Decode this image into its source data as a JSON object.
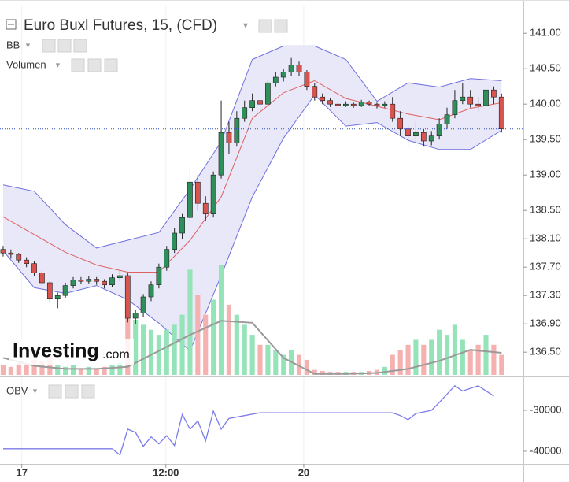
{
  "chart_data": [
    {
      "type": "candlestick",
      "title": "Euro Buxl Futures, 15, (CFD)",
      "watermark": {
        "text": "Investing",
        "suffix": ".com"
      },
      "xlim": [
        -0.4,
        66.8
      ],
      "xticks": [
        {
          "value": 2.4,
          "label": "17"
        },
        {
          "value": 20.9,
          "label": "12:00"
        },
        {
          "value": 38.6,
          "label": "20"
        }
      ],
      "ylim": [
        136.18,
        141.38
      ],
      "yticks": [
        {
          "value": 141,
          "label": "141.00"
        },
        {
          "value": 140.5,
          "label": "140.50"
        },
        {
          "value": 140,
          "label": "140.00"
        },
        {
          "value": 139.5,
          "label": "139.50"
        },
        {
          "value": 139,
          "label": "139.00"
        },
        {
          "value": 138.5,
          "label": "138.50"
        },
        {
          "value": 138.1,
          "label": "138.10"
        },
        {
          "value": 137.7,
          "label": "137.70"
        },
        {
          "value": 137.3,
          "label": "137.30"
        },
        {
          "value": 136.9,
          "label": "136.90"
        },
        {
          "value": 136.5,
          "label": "136.50"
        }
      ],
      "up_color": "#2f8f5b",
      "down_color": "#d9534f",
      "ohlc": [
        [
          137.95,
          138.0,
          137.85,
          137.9
        ],
        [
          137.9,
          137.95,
          137.82,
          137.88
        ],
        [
          137.88,
          137.9,
          137.76,
          137.8
        ],
        [
          137.8,
          137.84,
          137.7,
          137.75
        ],
        [
          137.75,
          137.78,
          137.58,
          137.62
        ],
        [
          137.62,
          137.66,
          137.44,
          137.48
        ],
        [
          137.48,
          137.5,
          137.2,
          137.25
        ],
        [
          137.25,
          137.34,
          137.12,
          137.3
        ],
        [
          137.3,
          137.48,
          137.26,
          137.44
        ],
        [
          137.44,
          137.56,
          137.4,
          137.52
        ],
        [
          137.52,
          137.56,
          137.46,
          137.5
        ],
        [
          137.5,
          137.57,
          137.47,
          137.53
        ],
        [
          137.53,
          137.56,
          137.45,
          137.5
        ],
        [
          137.5,
          137.53,
          137.4,
          137.45
        ],
        [
          137.45,
          137.6,
          137.42,
          137.55
        ],
        [
          137.55,
          137.66,
          137.5,
          137.58
        ],
        [
          137.58,
          137.62,
          136.92,
          136.98
        ],
        [
          136.98,
          137.1,
          136.9,
          137.05
        ],
        [
          137.05,
          137.32,
          137.0,
          137.28
        ],
        [
          137.28,
          137.5,
          137.22,
          137.45
        ],
        [
          137.45,
          137.75,
          137.4,
          137.7
        ],
        [
          137.7,
          138.0,
          137.65,
          137.95
        ],
        [
          137.95,
          138.25,
          137.9,
          138.18
        ],
        [
          138.18,
          138.45,
          138.1,
          138.4
        ],
        [
          138.4,
          139.1,
          138.35,
          138.9
        ],
        [
          138.9,
          139.0,
          138.5,
          138.6
        ],
        [
          138.6,
          138.7,
          138.35,
          138.45
        ],
        [
          138.45,
          139.05,
          138.4,
          139.0
        ],
        [
          139.0,
          140.05,
          138.95,
          139.6
        ],
        [
          139.6,
          139.75,
          139.3,
          139.45
        ],
        [
          139.45,
          139.9,
          139.4,
          139.8
        ],
        [
          139.8,
          140.05,
          139.75,
          139.95
        ],
        [
          139.95,
          140.15,
          139.9,
          140.05
        ],
        [
          140.05,
          140.1,
          139.92,
          140.0
        ],
        [
          140.0,
          140.35,
          139.98,
          140.3
        ],
        [
          140.3,
          140.45,
          140.25,
          140.38
        ],
        [
          140.38,
          140.5,
          140.32,
          140.45
        ],
        [
          140.45,
          140.65,
          140.4,
          140.55
        ],
        [
          140.55,
          140.6,
          140.4,
          140.45
        ],
        [
          140.45,
          140.48,
          140.2,
          140.25
        ],
        [
          140.25,
          140.3,
          140.05,
          140.1
        ],
        [
          140.1,
          140.15,
          140.0,
          140.05
        ],
        [
          140.05,
          140.08,
          139.96,
          140.0
        ],
        [
          140.0,
          140.03,
          139.95,
          139.98
        ],
        [
          139.98,
          140.04,
          139.96,
          140.0
        ],
        [
          140.0,
          140.02,
          139.95,
          139.98
        ],
        [
          139.98,
          140.06,
          139.96,
          140.03
        ],
        [
          140.03,
          140.05,
          139.97,
          140.0
        ],
        [
          140.0,
          140.02,
          139.94,
          139.98
        ],
        [
          139.98,
          140.04,
          139.95,
          140.0
        ],
        [
          140.0,
          140.1,
          139.75,
          139.8
        ],
        [
          139.8,
          139.9,
          139.55,
          139.65
        ],
        [
          139.65,
          139.7,
          139.4,
          139.55
        ],
        [
          139.55,
          139.75,
          139.45,
          139.6
        ],
        [
          139.6,
          139.65,
          139.4,
          139.48
        ],
        [
          139.48,
          139.62,
          139.42,
          139.55
        ],
        [
          139.55,
          139.8,
          139.5,
          139.72
        ],
        [
          139.72,
          139.95,
          139.65,
          139.85
        ],
        [
          139.85,
          140.2,
          139.8,
          140.05
        ],
        [
          140.05,
          140.3,
          140.0,
          140.1
        ],
        [
          140.1,
          140.2,
          139.95,
          140.0
        ],
        [
          140.0,
          140.1,
          139.9,
          139.98
        ],
        [
          139.98,
          140.3,
          139.95,
          140.2
        ],
        [
          140.2,
          140.25,
          140.0,
          140.1
        ],
        [
          140.1,
          140.15,
          139.6,
          139.65
        ]
      ],
      "bb": {
        "name": "BB",
        "color": "#6f6fe0",
        "middle_color": "#e06060",
        "fill": "#e8e8f8",
        "x": [
          0,
          4,
          8,
          12,
          16,
          20,
          24,
          28,
          32,
          36,
          40,
          44,
          48,
          52,
          56,
          60,
          64
        ],
        "upper": [
          138.86,
          138.77,
          138.3,
          137.97,
          138.08,
          138.19,
          138.8,
          139.47,
          140.63,
          140.82,
          140.82,
          140.63,
          140.04,
          140.3,
          140.24,
          140.36,
          140.33
        ],
        "middle": [
          138.41,
          138.16,
          137.91,
          137.73,
          137.63,
          137.63,
          138.08,
          138.69,
          139.8,
          140.16,
          140.33,
          140.08,
          139.97,
          139.86,
          139.78,
          139.94,
          140.02
        ],
        "lower": [
          137.93,
          137.41,
          137.33,
          137.44,
          137.24,
          136.91,
          136.52,
          137.58,
          138.69,
          139.52,
          140.13,
          139.69,
          139.74,
          139.49,
          139.36,
          139.36,
          139.63
        ]
      },
      "volume": {
        "name": "Volumen",
        "up_color": "#95e3b8",
        "down_color": "#f5b0b0",
        "ma_color": "#9a9a9a",
        "values": [
          10,
          8,
          12,
          10,
          15,
          14,
          20,
          10,
          8,
          10,
          6,
          8,
          6,
          8,
          10,
          12,
          70,
          55,
          50,
          45,
          40,
          45,
          50,
          60,
          105,
          80,
          60,
          75,
          110,
          70,
          60,
          50,
          40,
          30,
          30,
          25,
          20,
          25,
          20,
          15,
          5,
          4,
          3,
          3,
          3,
          3,
          3,
          4,
          5,
          8,
          20,
          25,
          30,
          35,
          30,
          35,
          45,
          40,
          50,
          35,
          25,
          30,
          40,
          30,
          20
        ],
        "ma_x": [
          0,
          4,
          8,
          12,
          16,
          20,
          24,
          28,
          32,
          36,
          40,
          44,
          48,
          52,
          56,
          60,
          64
        ],
        "ma": [
          17,
          9,
          6,
          6,
          8,
          24,
          40,
          54,
          52,
          17,
          1,
          1,
          2,
          6,
          14,
          25,
          22
        ]
      }
    },
    {
      "type": "line",
      "name": "OBV",
      "color": "#7b7bea",
      "x": [
        0,
        14,
        15,
        16,
        17,
        18,
        19,
        20,
        21,
        22,
        23,
        24,
        25,
        26,
        27,
        28,
        29,
        31,
        33,
        37,
        50,
        51,
        52,
        53,
        55,
        56,
        58,
        59,
        61,
        63
      ],
      "values": [
        -39400,
        -39400,
        -40900,
        -34600,
        -35400,
        -38800,
        -36500,
        -38200,
        -36200,
        -38600,
        -31000,
        -34600,
        -32600,
        -37500,
        -30200,
        -34600,
        -32000,
        -31300,
        -30600,
        -30600,
        -30600,
        -31300,
        -32300,
        -30800,
        -30000,
        -28100,
        -24000,
        -25300,
        -24000,
        -26500
      ],
      "ylim": [
        -42900,
        -22500
      ],
      "yticks": [
        {
          "value": -30000,
          "label": "-30000."
        },
        {
          "value": -40000,
          "label": "-40000."
        }
      ]
    }
  ]
}
